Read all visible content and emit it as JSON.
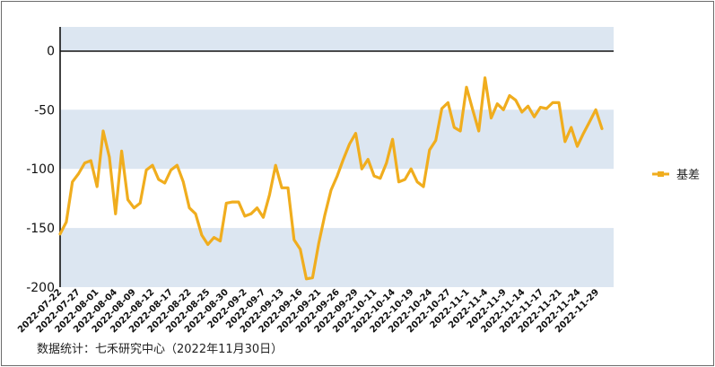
{
  "chart_data": {
    "type": "line",
    "title": "",
    "xlabel": "",
    "ylabel": "",
    "ylim": [
      -200,
      20
    ],
    "yticks": [
      0,
      -50,
      -100,
      -150,
      -200
    ],
    "grid": "alternating horizontal bands",
    "legend_position": "right",
    "x_tick_labels": [
      "2022-07-22",
      "2022-07-27",
      "2022-08-01",
      "2022-08-04",
      "2022-08-09",
      "2022-08-12",
      "2022-08-17",
      "2022-08-22",
      "2022-08-25",
      "2022-08-30",
      "2022-09-2",
      "2022-09-7",
      "2022-09-13",
      "2022-09-16",
      "2022-09-21",
      "2022-09-26",
      "2022-09-29",
      "2022-10-11",
      "2022-10-14",
      "2022-10-19",
      "2022-10-24",
      "2022-10-27",
      "2022-11-1",
      "2022-11-4",
      "2022-11-9",
      "2022-11-14",
      "2022-11-17",
      "2022-11-21",
      "2022-11-24",
      "2022-11-29"
    ],
    "series": [
      {
        "name": "基差",
        "color": "#f0ad1e",
        "values": [
          -155,
          -145,
          -111,
          -104,
          -95,
          -93,
          -115,
          -68,
          -90,
          -138,
          -85,
          -126,
          -133,
          -129,
          -101,
          -97,
          -109,
          -112,
          -101,
          -97,
          -111,
          -133,
          -138,
          -156,
          -164,
          -158,
          -161,
          -129,
          -128,
          -128,
          -140,
          -138,
          -133,
          -141,
          -122,
          -97,
          -116,
          -116,
          -160,
          -168,
          -193,
          -192,
          -163,
          -139,
          -118,
          -106,
          -92,
          -79,
          -70,
          -100,
          -92,
          -106,
          -108,
          -95,
          -75,
          -111,
          -109,
          -100,
          -111,
          -115,
          -84,
          -76,
          -49,
          -44,
          -65,
          -68,
          -31,
          -50,
          -68,
          -23,
          -57,
          -45,
          -50,
          -38,
          -42,
          -52,
          -47,
          -56,
          -48,
          -49,
          -44,
          -44,
          -77,
          -65,
          -81,
          -70,
          -60,
          -50,
          -66
        ]
      }
    ]
  },
  "legend": {
    "label": "基差"
  },
  "source": {
    "text": "数据统计：七禾研究中心（2022年11月30日）"
  }
}
